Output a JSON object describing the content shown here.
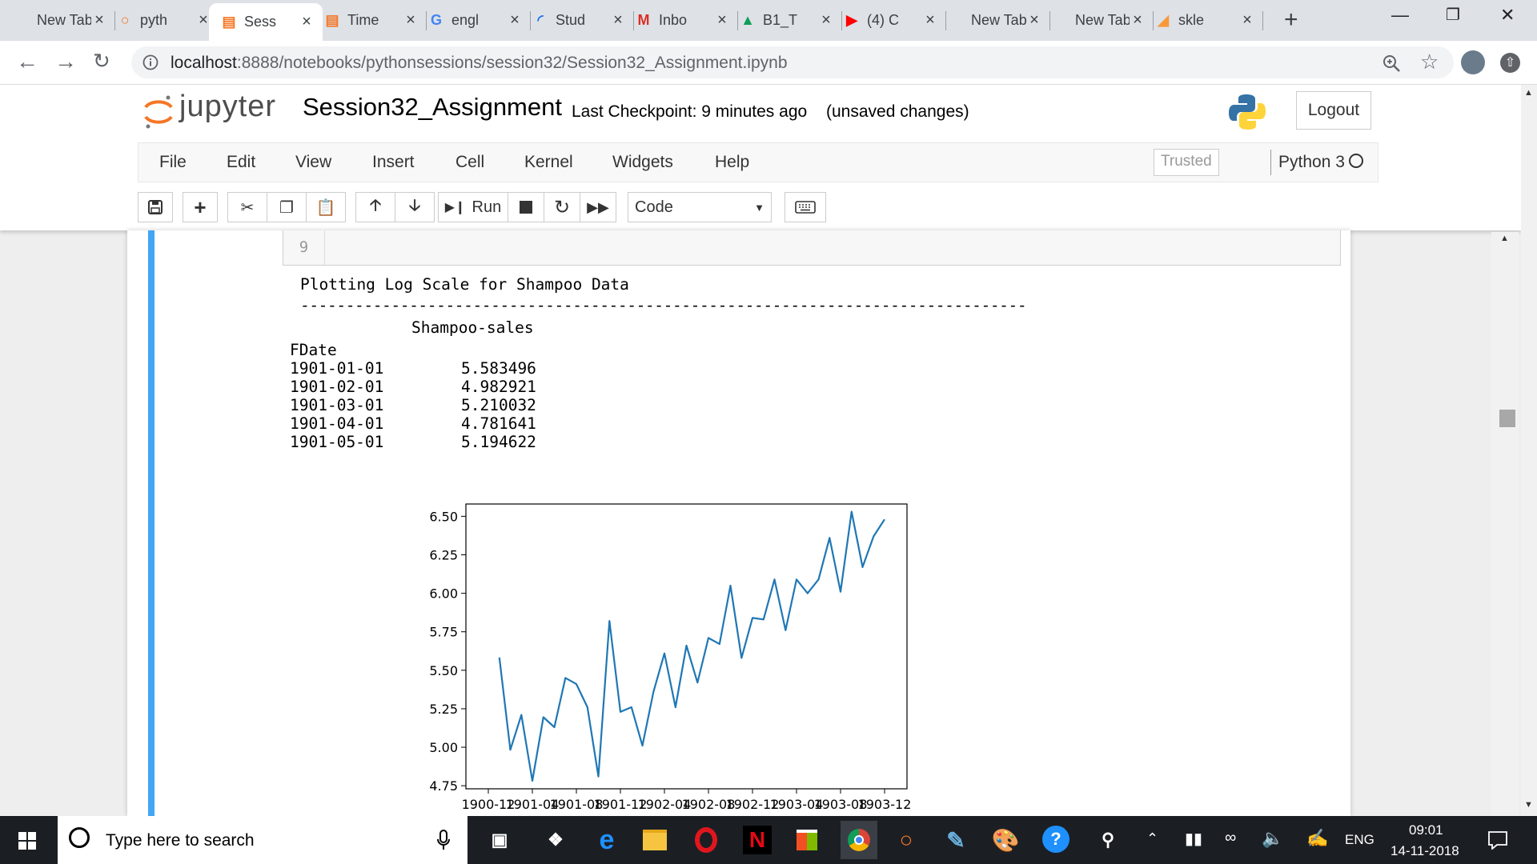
{
  "browser": {
    "tabs": [
      {
        "title": "New Tab",
        "icon": "blank-page-icon",
        "color": "#5f6368"
      },
      {
        "title": "pyth",
        "icon": "jupyter-logo-icon",
        "color": "#f37626"
      },
      {
        "title": "Sess",
        "icon": "notebook-icon",
        "color": "#f37626",
        "active": true
      },
      {
        "title": "Time",
        "icon": "notebook-icon",
        "color": "#f37626"
      },
      {
        "title": "engl",
        "icon": "google-g-icon",
        "color": "#4285f4"
      },
      {
        "title": "Stud",
        "icon": "loading-spinner-icon",
        "color": "#1a73e8"
      },
      {
        "title": "Inbo",
        "icon": "gmail-icon",
        "color": "#d93025"
      },
      {
        "title": "B1_T",
        "icon": "google-drive-icon",
        "color": "#0f9d58"
      },
      {
        "title": "(4) C",
        "icon": "youtube-icon",
        "color": "#ff0000"
      },
      {
        "title": "New Tab",
        "icon": "blank-page-icon",
        "color": "#5f6368"
      },
      {
        "title": "New Tab",
        "icon": "blank-page-icon",
        "color": "#5f6368"
      },
      {
        "title": "skle",
        "icon": "sklearn-icon",
        "color": "#f89939"
      }
    ],
    "url_host": "localhost",
    "url_path": ":8888/notebooks/pythonsessions/session32/Session32_Assignment.ipynb"
  },
  "jupyter": {
    "logo_text": "jupyter",
    "notebook_name": "Session32_Assignment",
    "checkpoint": "Last Checkpoint: 9 minutes ago",
    "unsaved": "(unsaved changes)",
    "logout_label": "Logout",
    "menus": [
      "File",
      "Edit",
      "View",
      "Insert",
      "Cell",
      "Kernel",
      "Widgets",
      "Help"
    ],
    "trusted_label": "Trusted",
    "kernel_label": "Python 3",
    "run_label": "Run",
    "cell_type": "Code"
  },
  "cell": {
    "line_number": "9",
    "output_title": "Plotting Log Scale for Shampoo Data",
    "divider": "--------------------------------------------------------------------------------",
    "column_header": "Shampoo-sales",
    "index_name": "FDate",
    "rows": [
      {
        "date": "1901-01-01",
        "value": "5.583496"
      },
      {
        "date": "1901-02-01",
        "value": "4.982921"
      },
      {
        "date": "1901-03-01",
        "value": "5.210032"
      },
      {
        "date": "1901-04-01",
        "value": "4.781641"
      },
      {
        "date": "1901-05-01",
        "value": "5.194622"
      }
    ]
  },
  "chart_data": {
    "type": "line",
    "x_tick_labels": [
      "1900-12",
      "1901-04",
      "1901-08",
      "1901-12",
      "1902-04",
      "1902-08",
      "1902-12",
      "1903-04",
      "1903-08",
      "1903-12"
    ],
    "y_tick_labels": [
      "4.75",
      "5.00",
      "5.25",
      "5.50",
      "5.75",
      "6.00",
      "6.25",
      "6.50"
    ],
    "ylim": [
      4.73,
      6.58
    ],
    "x": [
      "1901-01",
      "1901-02",
      "1901-03",
      "1901-04",
      "1901-05",
      "1901-06",
      "1901-07",
      "1901-08",
      "1901-09",
      "1901-10",
      "1901-11",
      "1901-12",
      "1902-01",
      "1902-02",
      "1902-03",
      "1902-04",
      "1902-05",
      "1902-06",
      "1902-07",
      "1902-08",
      "1902-09",
      "1902-10",
      "1902-11",
      "1902-12",
      "1903-01",
      "1903-02",
      "1903-03",
      "1903-04",
      "1903-05",
      "1903-06",
      "1903-07",
      "1903-08",
      "1903-09",
      "1903-10",
      "1903-11",
      "1903-12"
    ],
    "series": [
      {
        "color": "#1f77b4",
        "values": [
          5.583,
          4.983,
          5.21,
          4.782,
          5.195,
          5.13,
          5.45,
          5.41,
          5.26,
          4.81,
          5.82,
          5.23,
          5.26,
          5.01,
          5.36,
          5.61,
          5.26,
          5.66,
          5.42,
          5.71,
          5.67,
          6.05,
          5.58,
          5.84,
          5.83,
          6.09,
          5.76,
          6.09,
          6.0,
          6.09,
          6.36,
          6.01,
          6.53,
          6.17,
          6.37,
          6.48
        ]
      }
    ]
  },
  "taskbar": {
    "search_placeholder": "Type here to search",
    "language": "ENG",
    "time": "09:01",
    "date": "14-11-2018"
  }
}
